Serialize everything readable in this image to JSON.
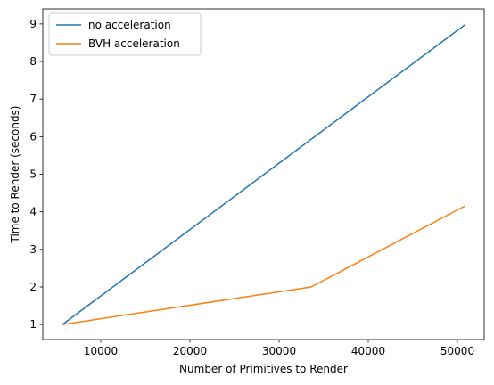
{
  "chart_data": {
    "type": "line",
    "title": "",
    "xlabel": "Number of Primitives to Render",
    "ylabel": "Time to Render (seconds)",
    "xlim": [
      3500,
      53000
    ],
    "ylim": [
      0.6,
      9.4
    ],
    "xticks": [
      10000,
      20000,
      30000,
      40000,
      50000
    ],
    "yticks": [
      1,
      2,
      3,
      4,
      5,
      6,
      7,
      8,
      9
    ],
    "grid": false,
    "legend_position": "top-left",
    "series": [
      {
        "name": "no acceleration",
        "color": "#1f77b4",
        "x": [
          5700,
          50800
        ],
        "y": [
          1.0,
          8.97
        ]
      },
      {
        "name": "BVH acceleration",
        "color": "#ff7f0e",
        "x": [
          5700,
          33600,
          50800
        ],
        "y": [
          1.0,
          2.0,
          4.15
        ]
      }
    ]
  }
}
